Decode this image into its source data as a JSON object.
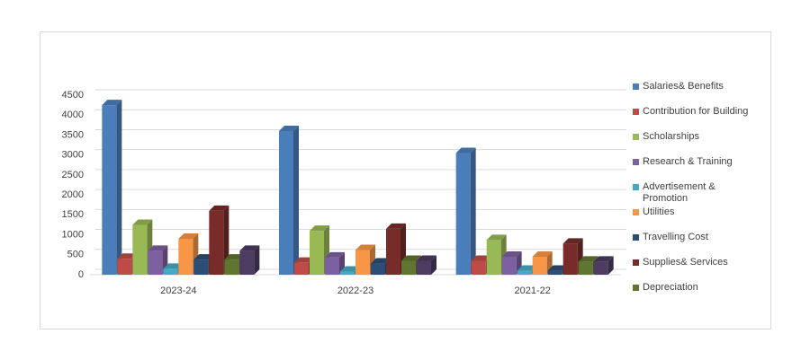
{
  "chart_data": {
    "type": "bar",
    "categories": [
      "2023-24",
      "2022-23",
      "2021-22"
    ],
    "series": [
      {
        "name": "Salaries& Benefits",
        "color": "#4a7ebb",
        "values": [
          4250,
          3600,
          3050
        ]
      },
      {
        "name": "Contribution for Building",
        "color": "#be4b48",
        "values": [
          400,
          300,
          350
        ]
      },
      {
        "name": "Scholarships",
        "color": "#98b954",
        "values": [
          1250,
          1100,
          870
        ]
      },
      {
        "name": "Research & Training",
        "color": "#7d60a0",
        "values": [
          600,
          430,
          450
        ]
      },
      {
        "name": "Advertisement & Promotion",
        "color": "#46aac5",
        "values": [
          150,
          80,
          100
        ]
      },
      {
        "name": "Utilities",
        "color": "#f79646",
        "values": [
          900,
          620,
          450
        ]
      },
      {
        "name": "Travelling Cost",
        "color": "#2c4d75",
        "values": [
          380,
          280,
          100
        ]
      },
      {
        "name": "Supplies& Services",
        "color": "#772c2a",
        "values": [
          1600,
          1150,
          780
        ]
      },
      {
        "name": "Depreciation",
        "color": "#5f7530",
        "values": [
          380,
          350,
          330
        ]
      },
      {
        "name": null,
        "color": "#4d3b62",
        "values": [
          600,
          350,
          330
        ]
      }
    ],
    "ylim": [
      0,
      4500
    ],
    "yticks": [
      0,
      500,
      1000,
      1500,
      2000,
      2500,
      3000,
      3500,
      4000,
      4500
    ],
    "grid": true,
    "legend": "right"
  }
}
